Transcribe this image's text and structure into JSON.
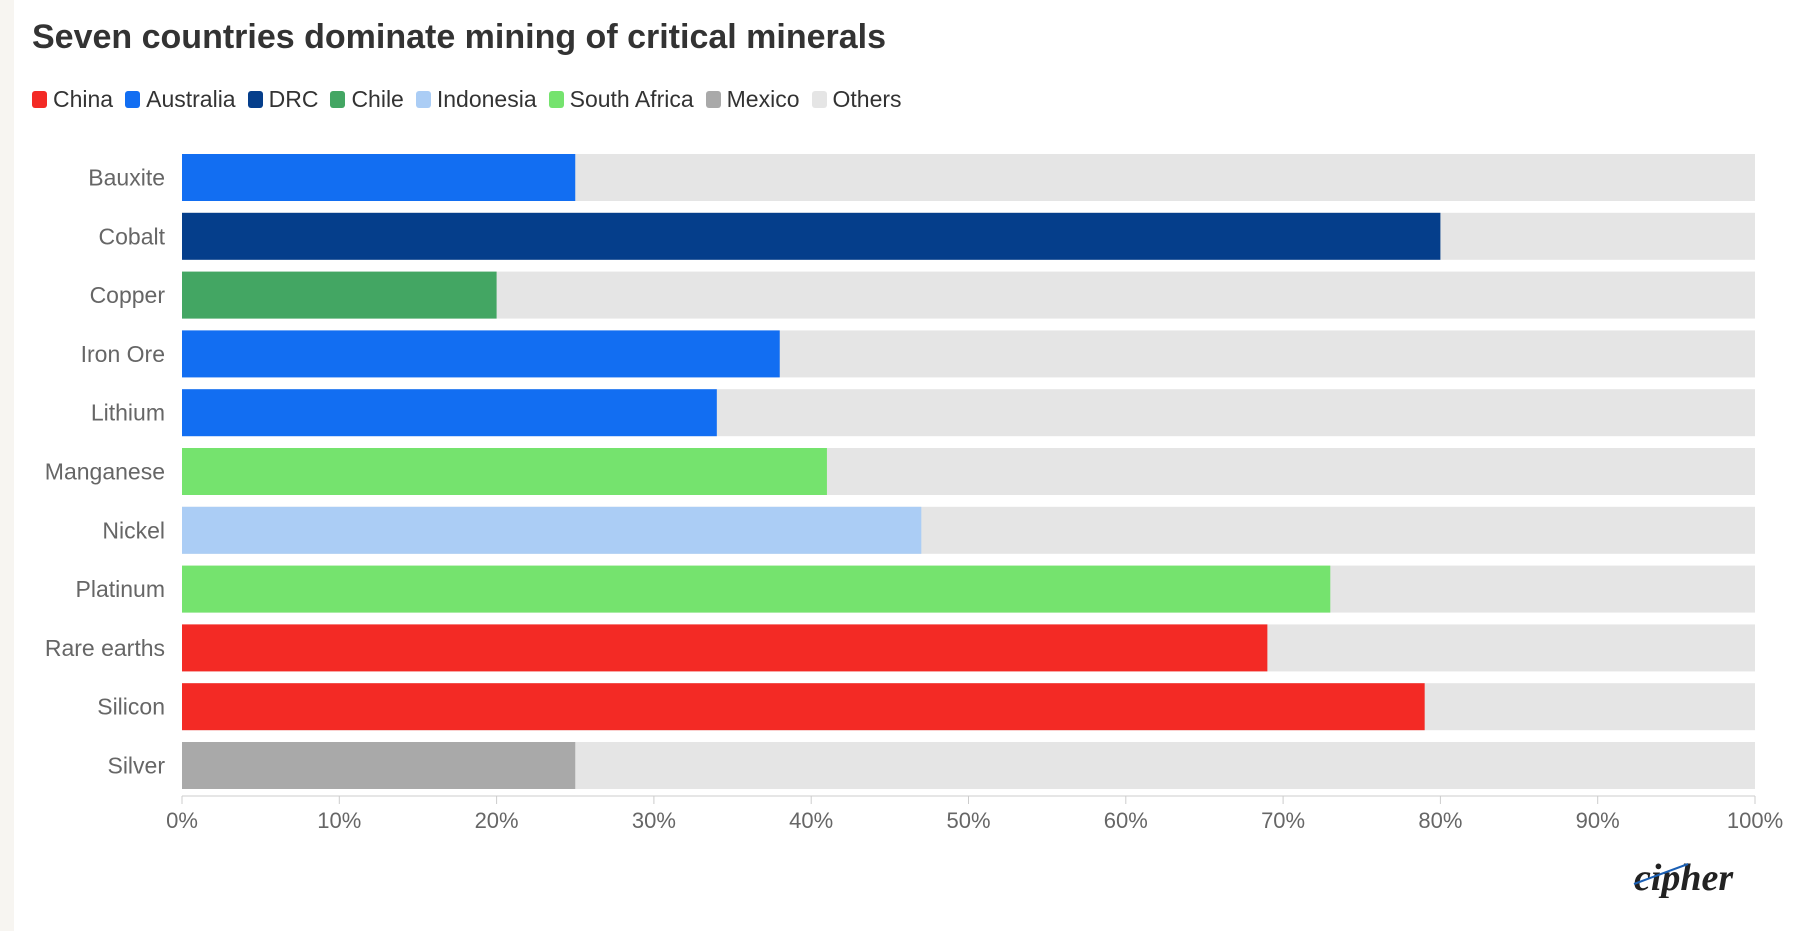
{
  "chart_data": {
    "type": "bar",
    "orientation": "horizontal",
    "stacked": true,
    "title": "Seven countries dominate mining of critical minerals",
    "legend": [
      {
        "name": "China",
        "color": "#f32a25"
      },
      {
        "name": "Australia",
        "color": "#126ef2"
      },
      {
        "name": "DRC",
        "color": "#053e8b"
      },
      {
        "name": "Chile",
        "color": "#43a663"
      },
      {
        "name": "Indonesia",
        "color": "#abcdf5"
      },
      {
        "name": "South Africa",
        "color": "#75e36e"
      },
      {
        "name": "Mexico",
        "color": "#a9a9a9"
      },
      {
        "name": "Others",
        "color": "#e5e5e5"
      }
    ],
    "legend_placement": "top-left",
    "categories": [
      "Bauxite",
      "Cobalt",
      "Copper",
      "Iron Ore",
      "Lithium",
      "Manganese",
      "Nickel",
      "Platinum",
      "Rare earths",
      "Silicon",
      "Silver"
    ],
    "bars": [
      {
        "category": "Bauxite",
        "country": "Australia",
        "value": 25
      },
      {
        "category": "Cobalt",
        "country": "DRC",
        "value": 80
      },
      {
        "category": "Copper",
        "country": "Chile",
        "value": 20
      },
      {
        "category": "Iron Ore",
        "country": "Australia",
        "value": 38
      },
      {
        "category": "Lithium",
        "country": "Australia",
        "value": 34
      },
      {
        "category": "Manganese",
        "country": "South Africa",
        "value": 41
      },
      {
        "category": "Nickel",
        "country": "Indonesia",
        "value": 47
      },
      {
        "category": "Platinum",
        "country": "South Africa",
        "value": 73
      },
      {
        "category": "Rare earths",
        "country": "China",
        "value": 69
      },
      {
        "category": "Silicon",
        "country": "China",
        "value": 79
      },
      {
        "category": "Silver",
        "country": "Mexico",
        "value": 25
      }
    ],
    "others_label": "Others",
    "xlim": [
      0,
      100
    ],
    "x_ticks": [
      "0%",
      "10%",
      "20%",
      "30%",
      "40%",
      "50%",
      "60%",
      "70%",
      "80%",
      "90%",
      "100%"
    ],
    "grid": false
  },
  "brand": {
    "name": "cipher",
    "accent": "#1a5fb4"
  }
}
